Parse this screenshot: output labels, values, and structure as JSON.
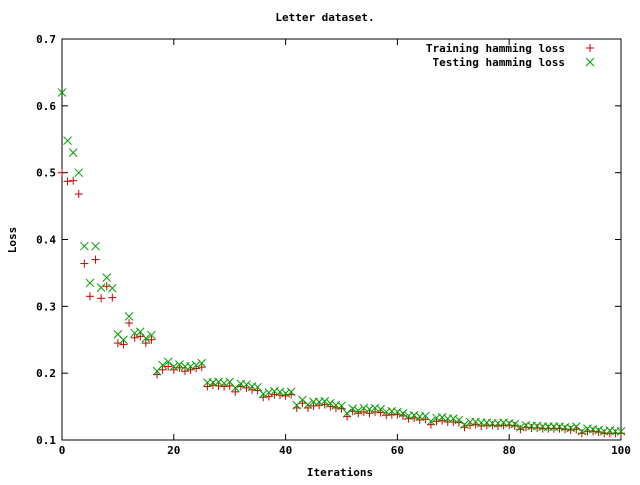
{
  "chart_data": {
    "type": "scatter",
    "title": "Letter dataset.",
    "xlabel": "Iterations",
    "ylabel": "Loss",
    "xlim": [
      0,
      100
    ],
    "ylim": [
      0.1,
      0.7
    ],
    "xticks": [
      0,
      20,
      40,
      60,
      80,
      100
    ],
    "yticks": [
      0.1,
      0.2,
      0.3,
      0.4,
      0.5,
      0.6,
      0.7
    ],
    "xtick_labels": [
      "0",
      "20",
      "40",
      "60",
      "80",
      "100"
    ],
    "ytick_labels": [
      "0.1",
      "0.2",
      "0.3",
      "0.4",
      "0.5",
      "0.6",
      "0.7"
    ],
    "grid": false,
    "legend_position": "top-right",
    "series": [
      {
        "name": "Training hamming loss",
        "marker": "plus",
        "color": "#cc0000",
        "x": [
          0,
          1,
          2,
          3,
          4,
          5,
          6,
          7,
          8,
          9,
          10,
          11,
          12,
          13,
          14,
          15,
          16,
          17,
          18,
          19,
          20,
          21,
          22,
          23,
          24,
          25,
          26,
          27,
          28,
          29,
          30,
          31,
          32,
          33,
          34,
          35,
          36,
          37,
          38,
          39,
          40,
          41,
          42,
          43,
          44,
          45,
          46,
          47,
          48,
          49,
          50,
          51,
          52,
          53,
          54,
          55,
          56,
          57,
          58,
          59,
          60,
          61,
          62,
          63,
          64,
          65,
          66,
          67,
          68,
          69,
          70,
          71,
          72,
          73,
          74,
          75,
          76,
          77,
          78,
          79,
          80,
          81,
          82,
          83,
          84,
          85,
          86,
          87,
          88,
          89,
          90,
          91,
          92,
          93,
          94,
          95,
          96,
          97,
          98,
          99,
          100
        ],
        "y": [
          0.5,
          0.487,
          0.488,
          0.468,
          0.364,
          0.315,
          0.37,
          0.312,
          0.33,
          0.313,
          0.245,
          0.243,
          0.275,
          0.253,
          0.255,
          0.245,
          0.25,
          0.198,
          0.205,
          0.21,
          0.205,
          0.208,
          0.203,
          0.205,
          0.207,
          0.209,
          0.18,
          0.182,
          0.181,
          0.18,
          0.181,
          0.172,
          0.18,
          0.178,
          0.175,
          0.174,
          0.164,
          0.165,
          0.168,
          0.167,
          0.166,
          0.168,
          0.148,
          0.155,
          0.148,
          0.151,
          0.152,
          0.153,
          0.15,
          0.148,
          0.147,
          0.135,
          0.143,
          0.14,
          0.142,
          0.14,
          0.142,
          0.141,
          0.137,
          0.138,
          0.138,
          0.136,
          0.132,
          0.133,
          0.13,
          0.131,
          0.123,
          0.128,
          0.129,
          0.127,
          0.127,
          0.126,
          0.119,
          0.122,
          0.123,
          0.121,
          0.122,
          0.122,
          0.121,
          0.122,
          0.122,
          0.121,
          0.116,
          0.119,
          0.118,
          0.118,
          0.117,
          0.117,
          0.117,
          0.117,
          0.116,
          0.115,
          0.116,
          0.11,
          0.113,
          0.113,
          0.112,
          0.11,
          0.11,
          0.11,
          0.11
        ]
      },
      {
        "name": "Testing hamming loss",
        "marker": "cross",
        "color": "#00a000",
        "x": [
          0,
          1,
          2,
          3,
          4,
          5,
          6,
          7,
          8,
          9,
          10,
          11,
          12,
          13,
          14,
          15,
          16,
          17,
          18,
          19,
          20,
          21,
          22,
          23,
          24,
          25,
          26,
          27,
          28,
          29,
          30,
          31,
          32,
          33,
          34,
          35,
          36,
          37,
          38,
          39,
          40,
          41,
          42,
          43,
          44,
          45,
          46,
          47,
          48,
          49,
          50,
          51,
          52,
          53,
          54,
          55,
          56,
          57,
          58,
          59,
          60,
          61,
          62,
          63,
          64,
          65,
          66,
          67,
          68,
          69,
          70,
          71,
          72,
          73,
          74,
          75,
          76,
          77,
          78,
          79,
          80,
          81,
          82,
          83,
          84,
          85,
          86,
          87,
          88,
          89,
          90,
          91,
          92,
          93,
          94,
          95,
          96,
          97,
          98,
          99,
          100
        ],
        "y": [
          0.62,
          0.548,
          0.53,
          0.5,
          0.39,
          0.335,
          0.39,
          0.328,
          0.343,
          0.327,
          0.258,
          0.25,
          0.285,
          0.26,
          0.262,
          0.252,
          0.257,
          0.203,
          0.212,
          0.217,
          0.21,
          0.213,
          0.21,
          0.21,
          0.212,
          0.215,
          0.186,
          0.186,
          0.187,
          0.185,
          0.187,
          0.178,
          0.184,
          0.183,
          0.18,
          0.179,
          0.169,
          0.171,
          0.173,
          0.172,
          0.17,
          0.172,
          0.152,
          0.16,
          0.153,
          0.157,
          0.157,
          0.158,
          0.155,
          0.152,
          0.151,
          0.14,
          0.147,
          0.144,
          0.148,
          0.146,
          0.148,
          0.146,
          0.142,
          0.143,
          0.142,
          0.14,
          0.136,
          0.137,
          0.135,
          0.136,
          0.128,
          0.133,
          0.134,
          0.132,
          0.132,
          0.13,
          0.123,
          0.127,
          0.127,
          0.126,
          0.126,
          0.125,
          0.125,
          0.126,
          0.125,
          0.124,
          0.119,
          0.122,
          0.121,
          0.121,
          0.12,
          0.12,
          0.12,
          0.12,
          0.119,
          0.118,
          0.12,
          0.113,
          0.117,
          0.116,
          0.115,
          0.113,
          0.114,
          0.113,
          0.113
        ]
      }
    ]
  }
}
